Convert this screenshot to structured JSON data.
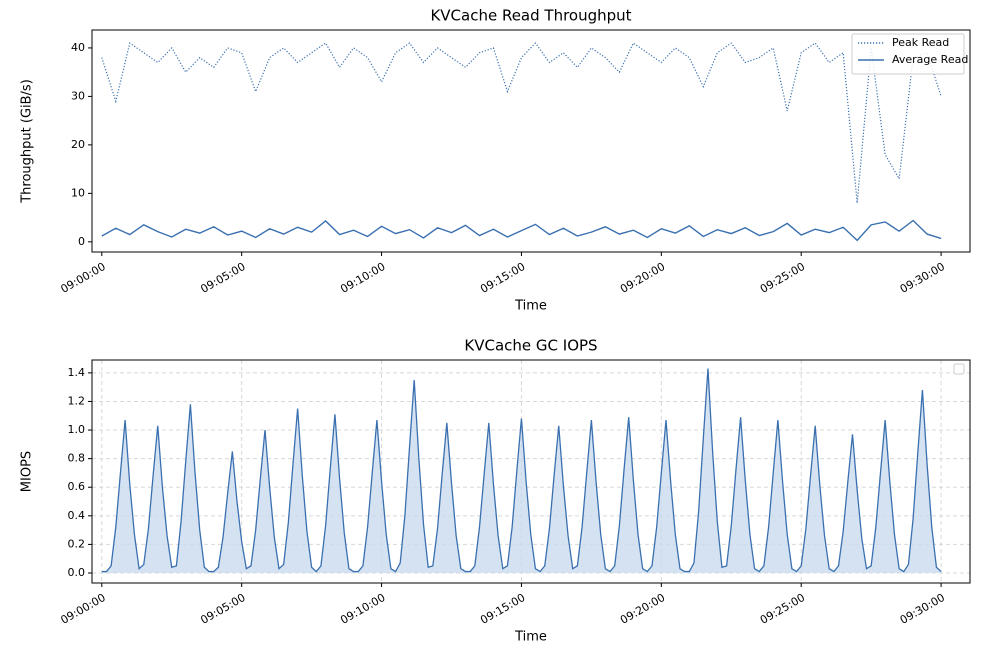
{
  "chart_data": [
    {
      "type": "line",
      "title": "KVCache Read Throughput",
      "x_label": "Time",
      "y_label": "Throughput (GiB/s)",
      "x": [
        "09:00:00",
        "09:00:30",
        "09:01:00",
        "09:01:30",
        "09:02:00",
        "09:02:30",
        "09:03:00",
        "09:03:30",
        "09:04:00",
        "09:04:30",
        "09:05:00",
        "09:05:30",
        "09:06:00",
        "09:06:30",
        "09:07:00",
        "09:07:30",
        "09:08:00",
        "09:08:30",
        "09:09:00",
        "09:09:30",
        "09:10:00",
        "09:10:30",
        "09:11:00",
        "09:11:30",
        "09:12:00",
        "09:12:30",
        "09:13:00",
        "09:13:30",
        "09:14:00",
        "09:14:30",
        "09:15:00",
        "09:15:30",
        "09:16:00",
        "09:16:30",
        "09:17:00",
        "09:17:30",
        "09:18:00",
        "09:18:30",
        "09:19:00",
        "09:19:30",
        "09:20:00",
        "09:20:30",
        "09:21:00",
        "09:21:30",
        "09:22:00",
        "09:22:30",
        "09:23:00",
        "09:23:30",
        "09:24:00",
        "09:24:30",
        "09:25:00",
        "09:25:30",
        "09:26:00",
        "09:26:30",
        "09:27:00",
        "09:27:30",
        "09:28:00",
        "09:28:30",
        "09:29:00",
        "09:29:30",
        "09:30:00"
      ],
      "series": [
        {
          "name": "Peak Read",
          "color": "#3a70b0",
          "style": "dotted",
          "values": [
            38,
            29,
            41,
            39,
            37,
            40,
            35,
            38,
            36,
            40,
            39,
            31,
            38,
            40,
            37,
            39,
            41,
            36,
            40,
            38,
            33,
            39,
            41,
            37,
            40,
            38,
            36,
            39,
            40,
            31,
            38,
            41,
            37,
            39,
            36,
            40,
            38,
            35,
            41,
            39,
            37,
            40,
            38,
            32,
            39,
            41,
            37,
            38,
            40,
            27,
            39,
            41,
            37,
            39,
            8,
            40,
            18,
            13,
            38,
            39,
            30
          ]
        },
        {
          "name": "Average Read",
          "color": "#3a70b0",
          "style": "solid",
          "values": [
            1.2,
            2.8,
            1.5,
            3.5,
            2.1,
            1.0,
            2.6,
            1.8,
            3.1,
            1.4,
            2.2,
            0.9,
            2.7,
            1.6,
            3.0,
            2.0,
            4.3,
            1.5,
            2.4,
            1.1,
            3.2,
            1.7,
            2.5,
            0.8,
            2.9,
            1.9,
            3.4,
            1.3,
            2.6,
            1.0,
            2.3,
            3.6,
            1.5,
            2.8,
            1.2,
            2.0,
            3.1,
            1.6,
            2.4,
            0.9,
            2.7,
            1.8,
            3.3,
            1.1,
            2.5,
            1.7,
            2.9,
            1.3,
            2.1,
            3.8,
            1.4,
            2.6,
            1.9,
            3.0,
            0.3,
            3.5,
            4.1,
            2.2,
            4.4,
            1.6,
            0.7
          ]
        }
      ],
      "xlim": [
        "08:59:39",
        "09:31:02"
      ],
      "xticks": [
        "09:00:00",
        "09:05:00",
        "09:10:00",
        "09:15:00",
        "09:20:00",
        "09:25:00",
        "09:30:00"
      ],
      "ylim": [
        -2.1,
        43.7
      ],
      "yticks": [
        0,
        10,
        20,
        30,
        40
      ],
      "grid": false,
      "legend": "upper right"
    },
    {
      "type": "area",
      "title": "KVCache GC IOPS",
      "x_label": "Time",
      "y_label": "MIOPS",
      "x": [
        "09:00:00",
        "09:00:10",
        "09:00:20",
        "09:00:30",
        "09:00:40",
        "09:00:50",
        "09:01:00",
        "09:01:10",
        "09:01:20",
        "09:01:30",
        "09:01:40",
        "09:01:50",
        "09:02:00",
        "09:02:10",
        "09:02:20",
        "09:02:30",
        "09:02:40",
        "09:02:50",
        "09:03:00",
        "09:03:10",
        "09:03:20",
        "09:03:30",
        "09:03:40",
        "09:03:50",
        "09:04:00",
        "09:04:10",
        "09:04:20",
        "09:04:30",
        "09:04:40",
        "09:04:50",
        "09:05:00",
        "09:05:10",
        "09:05:20",
        "09:05:30",
        "09:05:40",
        "09:05:50",
        "09:06:00",
        "09:06:10",
        "09:06:20",
        "09:06:30",
        "09:06:40",
        "09:06:50",
        "09:07:00",
        "09:07:10",
        "09:07:20",
        "09:07:30",
        "09:07:40",
        "09:07:50",
        "09:08:00",
        "09:08:10",
        "09:08:20",
        "09:08:30",
        "09:08:40",
        "09:08:50",
        "09:09:00",
        "09:09:10",
        "09:09:20",
        "09:09:30",
        "09:09:40",
        "09:09:50",
        "09:10:00",
        "09:10:10",
        "09:10:20",
        "09:10:30",
        "09:10:40",
        "09:10:50",
        "09:11:00",
        "09:11:10",
        "09:11:20",
        "09:11:30",
        "09:11:40",
        "09:11:50",
        "09:12:00",
        "09:12:10",
        "09:12:20",
        "09:12:30",
        "09:12:40",
        "09:12:50",
        "09:13:00",
        "09:13:10",
        "09:13:20",
        "09:13:30",
        "09:13:40",
        "09:13:50",
        "09:14:00",
        "09:14:10",
        "09:14:20",
        "09:14:30",
        "09:14:40",
        "09:14:50",
        "09:15:00",
        "09:15:10",
        "09:15:20",
        "09:15:30",
        "09:15:40",
        "09:15:50",
        "09:16:00",
        "09:16:10",
        "09:16:20",
        "09:16:30",
        "09:16:40",
        "09:16:50",
        "09:17:00",
        "09:17:10",
        "09:17:20",
        "09:17:30",
        "09:17:40",
        "09:17:50",
        "09:18:00",
        "09:18:10",
        "09:18:20",
        "09:18:30",
        "09:18:40",
        "09:18:50",
        "09:19:00",
        "09:19:10",
        "09:19:20",
        "09:19:30",
        "09:19:40",
        "09:19:50",
        "09:20:00",
        "09:20:10",
        "09:20:20",
        "09:20:30",
        "09:20:40",
        "09:20:50",
        "09:21:00",
        "09:21:10",
        "09:21:20",
        "09:21:30",
        "09:21:40",
        "09:21:50",
        "09:22:00",
        "09:22:10",
        "09:22:20",
        "09:22:30",
        "09:22:40",
        "09:22:50",
        "09:23:00",
        "09:23:10",
        "09:23:20",
        "09:23:30",
        "09:23:40",
        "09:23:50",
        "09:24:00",
        "09:24:10",
        "09:24:20",
        "09:24:30",
        "09:24:40",
        "09:24:50",
        "09:25:00",
        "09:25:10",
        "09:25:20",
        "09:25:30",
        "09:25:40",
        "09:25:50",
        "09:26:00",
        "09:26:10",
        "09:26:20",
        "09:26:30",
        "09:26:40",
        "09:26:50",
        "09:27:00",
        "09:27:10",
        "09:27:20",
        "09:27:30",
        "09:27:40",
        "09:27:50",
        "09:28:00",
        "09:28:10",
        "09:28:20",
        "09:28:30",
        "09:28:40",
        "09:28:50",
        "09:29:00",
        "09:29:10",
        "09:29:20",
        "09:29:30",
        "09:29:40",
        "09:29:50",
        "09:30:00"
      ],
      "values": [
        0.01,
        0.01,
        0.05,
        0.32,
        0.7,
        1.07,
        0.62,
        0.27,
        0.03,
        0.06,
        0.31,
        0.68,
        1.03,
        0.6,
        0.26,
        0.04,
        0.05,
        0.36,
        0.78,
        1.18,
        0.7,
        0.3,
        0.04,
        0.01,
        0.01,
        0.04,
        0.25,
        0.56,
        0.85,
        0.5,
        0.22,
        0.03,
        0.05,
        0.3,
        0.66,
        1.0,
        0.6,
        0.25,
        0.03,
        0.06,
        0.35,
        0.76,
        1.15,
        0.68,
        0.29,
        0.04,
        0.01,
        0.05,
        0.33,
        0.73,
        1.11,
        0.66,
        0.28,
        0.03,
        0.01,
        0.01,
        0.05,
        0.32,
        0.7,
        1.07,
        0.64,
        0.27,
        0.03,
        0.01,
        0.07,
        0.4,
        0.88,
        1.35,
        0.8,
        0.34,
        0.04,
        0.05,
        0.31,
        0.69,
        1.05,
        0.63,
        0.26,
        0.03,
        0.01,
        0.01,
        0.05,
        0.32,
        0.69,
        1.05,
        0.62,
        0.26,
        0.03,
        0.05,
        0.32,
        0.71,
        1.08,
        0.64,
        0.27,
        0.03,
        0.01,
        0.05,
        0.31,
        0.68,
        1.03,
        0.61,
        0.26,
        0.03,
        0.05,
        0.32,
        0.7,
        1.07,
        0.64,
        0.27,
        0.03,
        0.01,
        0.05,
        0.33,
        0.72,
        1.09,
        0.65,
        0.27,
        0.03,
        0.01,
        0.05,
        0.32,
        0.7,
        1.07,
        0.64,
        0.27,
        0.03,
        0.01,
        0.01,
        0.07,
        0.43,
        0.94,
        1.43,
        0.85,
        0.36,
        0.04,
        0.05,
        0.33,
        0.72,
        1.09,
        0.65,
        0.27,
        0.03,
        0.01,
        0.05,
        0.32,
        0.7,
        1.07,
        0.64,
        0.27,
        0.03,
        0.01,
        0.05,
        0.31,
        0.68,
        1.03,
        0.61,
        0.26,
        0.03,
        0.01,
        0.05,
        0.29,
        0.64,
        0.97,
        0.58,
        0.24,
        0.03,
        0.05,
        0.32,
        0.7,
        1.07,
        0.64,
        0.27,
        0.03,
        0.01,
        0.06,
        0.38,
        0.84,
        1.28,
        0.76,
        0.32,
        0.04,
        0.01
      ],
      "color": "#3a70b0",
      "fill": "#c9dbee",
      "xlim": [
        "08:59:39",
        "09:31:02"
      ],
      "xticks": [
        "09:00:00",
        "09:05:00",
        "09:10:00",
        "09:15:00",
        "09:20:00",
        "09:25:00",
        "09:30:00"
      ],
      "ylim": [
        -0.07,
        1.49
      ],
      "yticks": [
        {
          "value": 0,
          "label": "0.0"
        },
        0.2,
        0.4,
        0.6,
        0.8,
        {
          "value": 1,
          "label": "1.0"
        },
        1.2,
        1.4
      ],
      "grid": true,
      "legend": "upper right"
    }
  ]
}
